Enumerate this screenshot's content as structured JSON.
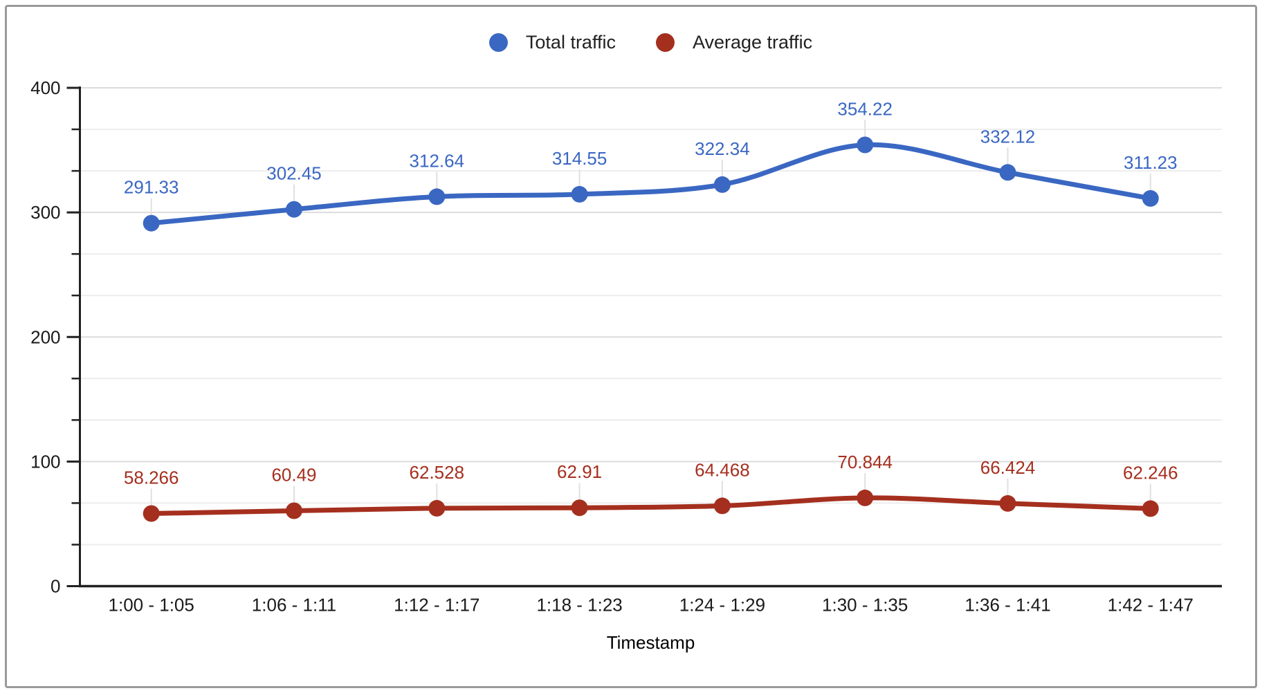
{
  "frame": {
    "background": "#ffffff",
    "border_color": "#9a9a9a"
  },
  "legend": {
    "position": "top"
  },
  "chart_data": {
    "type": "line",
    "smooth": true,
    "title": "",
    "xlabel": "Timestamp",
    "ylabel": "",
    "categories": [
      "1:00 - 1:05",
      "1:06 - 1:11",
      "1:12 - 1:17",
      "1:18 - 1:23",
      "1:24 - 1:29",
      "1:30 - 1:35",
      "1:36 - 1:41",
      "1:42 - 1:47"
    ],
    "series": [
      {
        "name": "Total traffic",
        "color": "#3a67c2",
        "values": [
          291.33,
          302.45,
          312.64,
          314.55,
          322.34,
          354.22,
          332.12,
          311.23
        ]
      },
      {
        "name": "Average traffic",
        "color": "#a52f1e",
        "values": [
          58.266,
          60.49,
          62.528,
          62.91,
          64.468,
          70.844,
          66.424,
          62.246
        ]
      }
    ],
    "ylim": [
      0,
      400
    ],
    "yticks": [
      0,
      100,
      200,
      300,
      400
    ],
    "minor_divisions_per_major": 3,
    "grid": {
      "major_color": "#dcdcdc",
      "minor_color": "#ededed",
      "vertical": false
    },
    "axis_color": "#212121",
    "tick_label_color": "#1a1a1a",
    "point_labels_visible": true,
    "legend_position": "top"
  }
}
